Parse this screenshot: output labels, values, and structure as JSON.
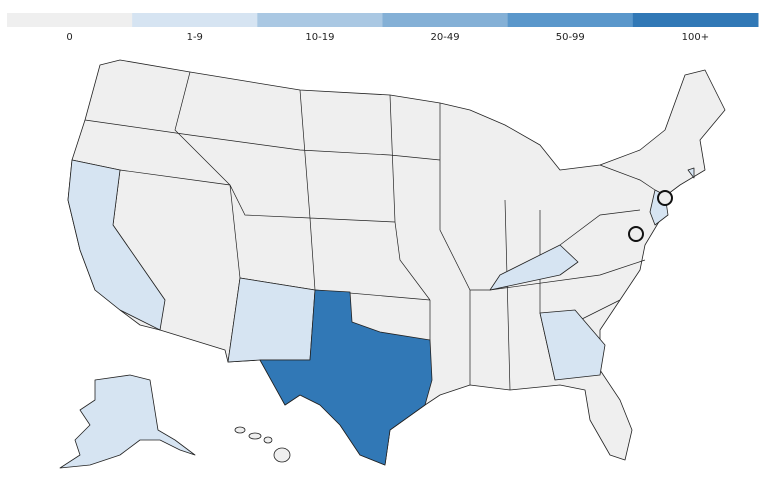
{
  "legend": {
    "labels": [
      "0",
      "1-9",
      "10-19",
      "20-49",
      "50-99",
      "100+"
    ],
    "colors": [
      "#efefef",
      "#d6e4f2",
      "#aac8e3",
      "#84b0d6",
      "#5a97cb",
      "#3178b6"
    ]
  }
}
